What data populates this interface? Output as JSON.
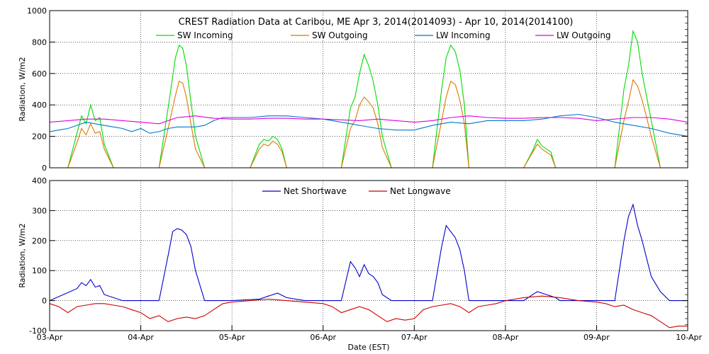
{
  "colors": {
    "sw_in": "#00dd00",
    "sw_out": "#dd7700",
    "lw_in": "#0077cc",
    "lw_out": "#dd00dd",
    "net_sw": "#0000cc",
    "net_lw": "#cc0000"
  },
  "chart_data": [
    {
      "type": "line",
      "title": "CREST Radiation Data at Caribou, ME   Apr  3, 2014(2014093) - Apr 10, 2014(2014100)",
      "ylabel": "Radiation, W/m2",
      "xlabel": "",
      "ylim": [
        0,
        1000
      ],
      "yticks": [
        "0",
        "200",
        "400",
        "600",
        "800",
        "1000"
      ],
      "xlim_days": [
        0,
        7
      ],
      "grid": true,
      "legend_position": "top",
      "series": [
        {
          "name": "SW Incoming",
          "color": "#00dd00",
          "x": [
            0.2,
            0.3,
            0.35,
            0.4,
            0.45,
            0.5,
            0.55,
            0.6,
            0.7,
            0.8,
            1.0,
            1.2,
            1.3,
            1.38,
            1.42,
            1.46,
            1.5,
            1.55,
            1.6,
            1.7,
            1.8,
            2.0,
            2.2,
            2.3,
            2.35,
            2.4,
            2.45,
            2.5,
            2.55,
            2.6,
            2.7,
            2.8,
            3.0,
            3.2,
            3.3,
            3.35,
            3.4,
            3.45,
            3.5,
            3.55,
            3.6,
            3.65,
            3.75,
            3.85,
            4.0,
            4.2,
            4.3,
            4.35,
            4.4,
            4.45,
            4.5,
            4.55,
            4.6,
            4.7,
            4.8,
            5.0,
            5.2,
            5.3,
            5.35,
            5.4,
            5.45,
            5.5,
            5.55,
            5.6,
            5.7,
            5.8,
            6.0,
            6.2,
            6.3,
            6.35,
            6.4,
            6.45,
            6.5,
            6.55,
            6.6,
            6.7,
            6.8,
            7.0
          ],
          "y": [
            0,
            220,
            330,
            280,
            400,
            300,
            320,
            150,
            0,
            0,
            0,
            0,
            380,
            700,
            780,
            760,
            650,
            420,
            200,
            0,
            0,
            0,
            0,
            150,
            180,
            170,
            200,
            180,
            120,
            0,
            0,
            0,
            0,
            0,
            380,
            450,
            600,
            720,
            650,
            550,
            400,
            200,
            0,
            0,
            0,
            0,
            500,
            700,
            780,
            740,
            620,
            400,
            0,
            0,
            0,
            0,
            0,
            110,
            180,
            140,
            120,
            100,
            0,
            0,
            0,
            0,
            0,
            0,
            500,
            650,
            870,
            800,
            600,
            450,
            300,
            0,
            0,
            0
          ]
        },
        {
          "name": "SW Outgoing",
          "color": "#dd7700",
          "x": [
            0.2,
            0.3,
            0.35,
            0.4,
            0.45,
            0.5,
            0.55,
            0.6,
            0.7,
            0.8,
            1.0,
            1.2,
            1.3,
            1.38,
            1.42,
            1.46,
            1.5,
            1.55,
            1.6,
            1.7,
            1.8,
            2.0,
            2.2,
            2.3,
            2.35,
            2.4,
            2.45,
            2.5,
            2.55,
            2.6,
            2.7,
            2.8,
            3.0,
            3.2,
            3.3,
            3.35,
            3.4,
            3.45,
            3.5,
            3.55,
            3.6,
            3.65,
            3.75,
            3.85,
            4.0,
            4.2,
            4.3,
            4.35,
            4.4,
            4.45,
            4.5,
            4.55,
            4.6,
            4.7,
            4.8,
            5.0,
            5.2,
            5.3,
            5.35,
            5.4,
            5.45,
            5.5,
            5.55,
            5.6,
            5.7,
            5.8,
            6.0,
            6.2,
            6.3,
            6.35,
            6.4,
            6.45,
            6.5,
            6.55,
            6.6,
            6.7,
            6.8,
            7.0
          ],
          "y": [
            0,
            160,
            250,
            210,
            280,
            220,
            230,
            120,
            0,
            0,
            0,
            0,
            250,
            460,
            550,
            540,
            450,
            280,
            120,
            0,
            0,
            0,
            0,
            120,
            150,
            140,
            170,
            150,
            100,
            0,
            0,
            0,
            0,
            0,
            250,
            300,
            400,
            450,
            420,
            380,
            280,
            130,
            0,
            0,
            0,
            0,
            300,
            450,
            550,
            530,
            430,
            280,
            0,
            0,
            0,
            0,
            0,
            100,
            150,
            120,
            100,
            80,
            0,
            0,
            0,
            0,
            0,
            0,
            300,
            420,
            560,
            520,
            430,
            320,
            200,
            0,
            0,
            0
          ]
        },
        {
          "name": "LW Incoming",
          "color": "#0077cc",
          "x": [
            0,
            0.1,
            0.2,
            0.3,
            0.4,
            0.5,
            0.6,
            0.7,
            0.8,
            0.9,
            1.0,
            1.1,
            1.2,
            1.3,
            1.4,
            1.5,
            1.6,
            1.7,
            1.8,
            1.9,
            2.0,
            2.2,
            2.4,
            2.6,
            2.8,
            3.0,
            3.2,
            3.4,
            3.6,
            3.8,
            4.0,
            4.2,
            4.4,
            4.6,
            4.8,
            5.0,
            5.2,
            5.4,
            5.6,
            5.8,
            6.0,
            6.2,
            6.4,
            6.6,
            6.8,
            7.0
          ],
          "y": [
            230,
            240,
            250,
            270,
            290,
            280,
            270,
            260,
            250,
            230,
            250,
            220,
            230,
            250,
            260,
            260,
            260,
            270,
            300,
            320,
            320,
            320,
            330,
            330,
            320,
            310,
            290,
            270,
            250,
            240,
            240,
            270,
            290,
            280,
            300,
            300,
            300,
            310,
            330,
            340,
            320,
            290,
            270,
            250,
            220,
            200
          ]
        },
        {
          "name": "LW Outgoing",
          "color": "#dd00dd",
          "x": [
            0,
            0.2,
            0.4,
            0.6,
            0.8,
            1.0,
            1.2,
            1.4,
            1.6,
            1.8,
            2.0,
            2.2,
            2.4,
            2.6,
            2.8,
            3.0,
            3.2,
            3.4,
            3.6,
            3.8,
            4.0,
            4.2,
            4.4,
            4.6,
            4.8,
            5.0,
            5.2,
            5.4,
            5.6,
            5.8,
            6.0,
            6.2,
            6.4,
            6.6,
            6.8,
            7.0
          ],
          "y": [
            290,
            300,
            310,
            310,
            300,
            290,
            280,
            320,
            330,
            315,
            310,
            310,
            315,
            315,
            310,
            310,
            305,
            300,
            310,
            300,
            290,
            300,
            320,
            330,
            320,
            315,
            315,
            320,
            320,
            315,
            300,
            310,
            320,
            320,
            310,
            290
          ]
        }
      ]
    },
    {
      "type": "line",
      "title": "",
      "ylabel": "Radiation, W/m2",
      "xlabel": "Date (EST)",
      "ylim": [
        -100,
        400
      ],
      "yticks": [
        "-100",
        "0",
        "100",
        "200",
        "300",
        "400"
      ],
      "xlim_days": [
        0,
        7
      ],
      "xticks": [
        "03-Apr",
        "04-Apr",
        "05-Apr",
        "06-Apr",
        "07-Apr",
        "08-Apr",
        "09-Apr",
        "10-Apr"
      ],
      "grid": true,
      "legend_position": "top",
      "series": [
        {
          "name": "Net Shortwave",
          "color": "#0000cc",
          "x": [
            0,
            0.3,
            0.35,
            0.4,
            0.45,
            0.5,
            0.55,
            0.6,
            0.8,
            1.0,
            1.2,
            1.3,
            1.35,
            1.4,
            1.45,
            1.5,
            1.55,
            1.6,
            1.7,
            1.8,
            2.0,
            2.3,
            2.4,
            2.5,
            2.6,
            2.8,
            3.0,
            3.2,
            3.3,
            3.35,
            3.4,
            3.45,
            3.5,
            3.55,
            3.6,
            3.65,
            3.75,
            3.85,
            4.0,
            4.2,
            4.3,
            4.35,
            4.4,
            4.45,
            4.5,
            4.55,
            4.6,
            4.7,
            4.8,
            5.0,
            5.2,
            5.3,
            5.35,
            5.4,
            5.45,
            5.5,
            5.55,
            5.6,
            5.8,
            6.0,
            6.2,
            6.3,
            6.35,
            6.4,
            6.45,
            6.5,
            6.55,
            6.6,
            6.7,
            6.8,
            7.0
          ],
          "y": [
            0,
            40,
            60,
            50,
            70,
            45,
            50,
            20,
            0,
            0,
            0,
            150,
            230,
            240,
            235,
            220,
            180,
            100,
            0,
            0,
            0,
            5,
            15,
            25,
            10,
            0,
            0,
            0,
            130,
            110,
            80,
            120,
            90,
            80,
            60,
            20,
            0,
            0,
            0,
            0,
            180,
            250,
            230,
            210,
            170,
            100,
            0,
            0,
            0,
            0,
            0,
            20,
            30,
            25,
            20,
            15,
            10,
            0,
            0,
            0,
            0,
            200,
            280,
            320,
            250,
            200,
            140,
            80,
            30,
            0,
            0
          ]
        },
        {
          "name": "Net Longwave",
          "color": "#cc0000",
          "x": [
            0,
            0.1,
            0.2,
            0.3,
            0.4,
            0.5,
            0.6,
            0.7,
            0.8,
            0.9,
            1.0,
            1.1,
            1.2,
            1.3,
            1.4,
            1.5,
            1.6,
            1.7,
            1.8,
            1.9,
            2.0,
            2.2,
            2.4,
            2.6,
            2.8,
            3.0,
            3.1,
            3.2,
            3.3,
            3.4,
            3.5,
            3.6,
            3.7,
            3.8,
            3.9,
            4.0,
            4.1,
            4.2,
            4.3,
            4.4,
            4.5,
            4.6,
            4.7,
            4.8,
            4.9,
            5.0,
            5.2,
            5.4,
            5.6,
            5.8,
            6.0,
            6.1,
            6.2,
            6.3,
            6.4,
            6.5,
            6.6,
            6.7,
            6.8,
            6.9,
            7.0
          ],
          "y": [
            -10,
            -20,
            -40,
            -20,
            -15,
            -10,
            -10,
            -15,
            -20,
            -30,
            -40,
            -60,
            -50,
            -70,
            -60,
            -55,
            -60,
            -50,
            -30,
            -10,
            -5,
            0,
            5,
            0,
            -5,
            -10,
            -20,
            -40,
            -30,
            -20,
            -30,
            -50,
            -70,
            -60,
            -65,
            -60,
            -30,
            -20,
            -15,
            -10,
            -20,
            -40,
            -20,
            -15,
            -10,
            0,
            10,
            15,
            10,
            0,
            -5,
            -10,
            -20,
            -15,
            -30,
            -40,
            -50,
            -70,
            -90,
            -85,
            -85
          ]
        }
      ]
    }
  ]
}
